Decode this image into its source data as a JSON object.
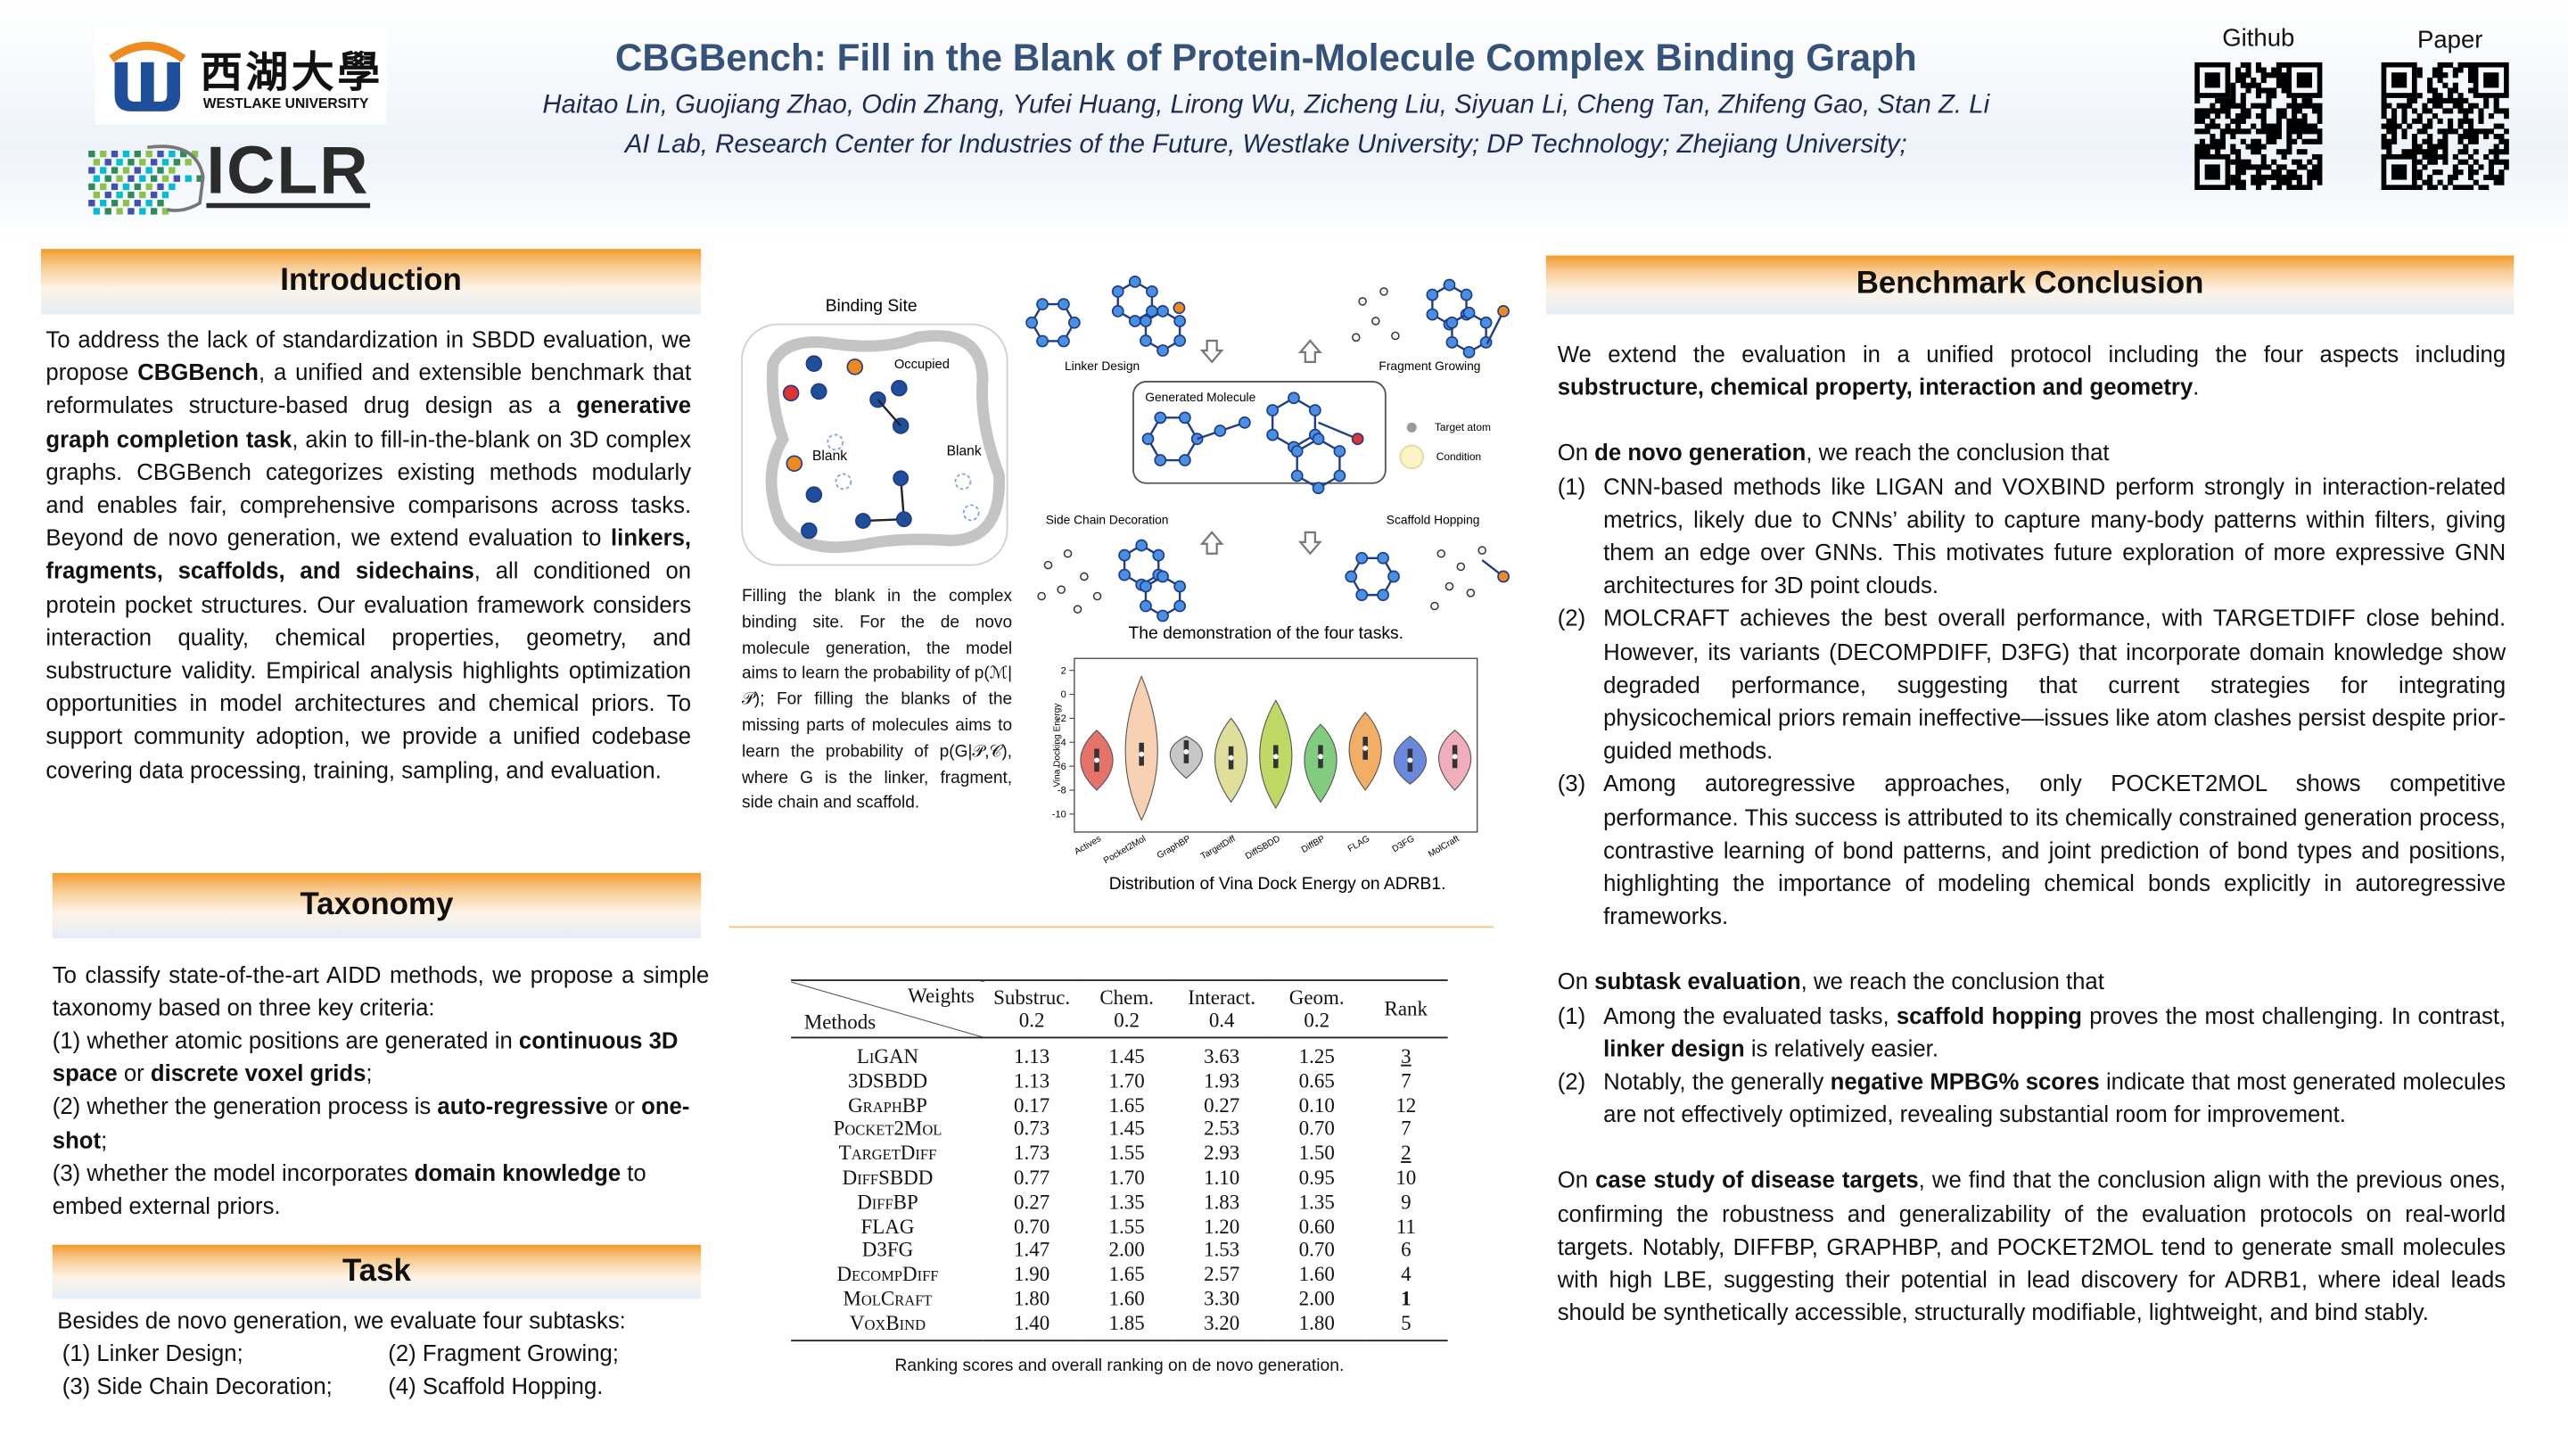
{
  "header": {
    "title": "CBGBench: Fill in the Blank of Protein-Molecule Complex Binding Graph",
    "authors": "Haitao Lin, Guojiang Zhao, Odin Zhang, Yufei Huang, Lirong Wu, Zicheng Liu, Siyuan Li, Cheng Tan, Zhifeng Gao, Stan Z. Li",
    "affiliation": "AI Lab, Research Center for Industries of the Future, Westlake University; DP Technology; Zhejiang University;",
    "github_label": "Github",
    "paper_label": "Paper",
    "westlake_cn": "西湖大學",
    "westlake_en": "WESTLAKE UNIVERSITY",
    "iclr": "ICLR"
  },
  "introduction": {
    "heading": "Introduction",
    "paragraph": [
      "To address the lack of standardization in SBDD evaluation, we propose ",
      {
        "bold": "CBGBench"
      },
      ", a unified and extensible benchmark that reformulates structure-based drug design as a ",
      {
        "bold": "generative graph completion task"
      },
      ", akin to fill-in-the-blank on 3D complex graphs. CBGBench categorizes existing methods modularly and enables fair, comprehensive comparisons across tasks. Beyond de novo generation, we extend evaluation to ",
      {
        "bold": "linkers, fragments, scaffolds, and sidechains"
      },
      ", all conditioned on protein pocket structures. Our evaluation framework considers interaction quality, chemical properties, geometry, and substructure validity. Empirical analysis highlights optimization opportunities in model architectures and chemical priors. To support community adoption, we provide a unified codebase covering data processing, training, sampling, and evaluation."
    ]
  },
  "taxonomy": {
    "heading": "Taxonomy",
    "intro": [
      "To classify state-of-the-art AIDD methods, we propose a simple taxonomy based on three key criteria:"
    ],
    "criteria": [
      [
        "(1) whether atomic positions are generated in ",
        {
          "bold": "continuous 3D space"
        },
        " or ",
        {
          "bold": "discrete voxel grids"
        },
        ";"
      ],
      [
        "(2) whether the generation process is ",
        {
          "bold": "auto-regressive"
        },
        " or ",
        {
          "bold": "one-shot"
        },
        ";"
      ],
      [
        "(3) whether the model incorporates ",
        {
          "bold": "domain knowledge"
        },
        " to embed external priors."
      ]
    ]
  },
  "task": {
    "heading": "Task",
    "intro": "Besides de novo generation, we evaluate four subtasks:",
    "subtasks": [
      "(1) Linker Design;",
      "(2)  Fragment Growing;",
      "(3) Side Chain Decoration;",
      "(4)  Scaffold Hopping."
    ]
  },
  "figure": {
    "binding_site": "Binding Site",
    "occupied": "Occupied",
    "blank_left": "Blank",
    "blank_right": "Blank",
    "binding_caption": "Filling the blank in the complex binding site. For the de novo molecule generation, the model aims to learn the probability of p(ℳ|𝒫); For filling the blanks of the missing parts of molecules aims to learn the probability of p(G|𝒫,𝒞), where G is the linker, fragment, side chain and scaffold.",
    "linker_design": "Linker Design",
    "fragment_growing": "Fragment Growing",
    "generated_molecule": "Generated Molecule",
    "target_atom": "Target atom",
    "condition": "Condition",
    "side_chain": "Side Chain Decoration",
    "scaffold_hopping": "Scaffold Hopping",
    "tasks_caption": "The demonstration of the four tasks.",
    "violin_caption": "Distribution of Vina Dock Energy on ADRB1."
  },
  "chart_data": {
    "type": "violin",
    "y_label": "Vina Docking Energy",
    "categories": [
      "Actives",
      "Pocket2Mol",
      "GraphBP",
      "TargetDiff",
      "DiffSBDD",
      "DiffBP",
      "FLAG",
      "D3FG",
      "MolCraft"
    ],
    "values": [
      -5.5,
      -5,
      -4.8,
      -5.3,
      -5.2,
      -5.2,
      -4.5,
      -5.5,
      -5.2
    ],
    "low": [
      -8,
      -10.5,
      -7,
      -9,
      -9.5,
      -9,
      -8,
      -7.5,
      -8
    ],
    "high": [
      -3,
      1.5,
      -3.5,
      -2,
      -0.5,
      -2.5,
      -1.5,
      -3.5,
      -3
    ],
    "colors": [
      "#e05a4f",
      "#f6c9a3",
      "#bdbdbd",
      "#d9d98a",
      "#b5d24a",
      "#6cc36a",
      "#f0a04b",
      "#4f74d9",
      "#ee9fb0"
    ],
    "ylim": [
      -11.5,
      3
    ],
    "yticks": [
      2,
      0,
      -2,
      -4,
      -6,
      -8,
      -10
    ],
    "grid": false
  },
  "table": {
    "weights_label": "Weights",
    "methods_label": "Methods",
    "columns": [
      [
        "Substruc.",
        "0.2"
      ],
      [
        "Chem.",
        "0.2"
      ],
      [
        "Interact.",
        "0.4"
      ],
      [
        "Geom.",
        "0.2"
      ]
    ],
    "rank_label": "Rank",
    "rows": [
      [
        "LiGAN",
        "1.13",
        "1.45",
        "3.63",
        "1.25",
        {
          "underline": "3"
        }
      ],
      [
        "3DSBDD",
        "1.13",
        "1.70",
        "1.93",
        "0.65",
        "7"
      ],
      [
        "GraphBP",
        "0.17",
        "1.65",
        "0.27",
        "0.10",
        "12"
      ],
      [
        "Pocket2Mol",
        "0.73",
        "1.45",
        "2.53",
        "0.70",
        "7"
      ],
      [
        "TargetDiff",
        "1.73",
        "1.55",
        "2.93",
        "1.50",
        {
          "underline": "2"
        }
      ],
      [
        "DiffSBDD",
        "0.77",
        "1.70",
        "1.10",
        "0.95",
        "10"
      ],
      [
        "DiffBP",
        "0.27",
        "1.35",
        "1.83",
        "1.35",
        "9"
      ],
      [
        "FLAG",
        "0.70",
        "1.55",
        "1.20",
        "0.60",
        "11"
      ],
      [
        "D3FG",
        "1.47",
        "2.00",
        "1.53",
        "0.70",
        "6"
      ],
      [
        "DecompDiff",
        "1.90",
        "1.65",
        "2.57",
        "1.60",
        "4"
      ],
      [
        "MolCraft",
        "1.80",
        "1.60",
        "3.30",
        "2.00",
        {
          "bold": "1"
        }
      ],
      [
        "VoxBind",
        "1.40",
        "1.85",
        "3.20",
        "1.80",
        "5"
      ]
    ],
    "caption": "Ranking scores and overall ranking on de novo generation."
  },
  "conclusion": {
    "heading": "Benchmark Conclusion",
    "blocks": [
      {
        "p": [
          "We extend the evaluation in a unified protocol including the four aspects including ",
          {
            "bold": "substructure, chemical property, interaction and geometry"
          },
          "."
        ]
      },
      {
        "p": [
          "On ",
          {
            "bold": "de novo generation"
          },
          ", we reach the conclusion that"
        ]
      },
      {
        "list": [
          {
            "marker": "(1)",
            "runs": [
              "CNN-based methods like LIGAN and VOXBIND perform strongly in interaction-related metrics, likely due to CNNs’ ability to capture many-body patterns within filters, giving them an edge over GNNs. This motivates future exploration of more expressive GNN architectures for 3D point clouds."
            ]
          },
          {
            "marker": "(2)",
            "runs": [
              "MOLCRAFT achieves the best overall performance, with TARGETDIFF close behind. However, its variants (DECOMPDIFF, D3FG) that incorporate domain knowledge show degraded performance, suggesting that current strategies for integrating physicochemical priors remain ineffective—issues like atom clashes persist despite prior-guided methods."
            ]
          },
          {
            "marker": "(3)",
            "runs": [
              "Among autoregressive approaches, only POCKET2MOL shows competitive performance. This success is attributed to its chemically constrained generation process, contrastive learning of bond patterns, and joint prediction of bond types and positions, highlighting the importance of modeling chemical bonds explicitly in autoregressive frameworks."
            ]
          }
        ]
      },
      {
        "p": [
          "On ",
          {
            "bold": "subtask evaluation"
          },
          ", we reach the conclusion that"
        ]
      },
      {
        "list": [
          {
            "marker": "(1)",
            "runs": [
              "Among the evaluated tasks, ",
              {
                "bold": "scaffold hopping"
              },
              " proves the most challenging. In contrast, ",
              {
                "bold": "linker design"
              },
              " is relatively easier."
            ]
          },
          {
            "marker": "(2)",
            "runs": [
              "Notably, the generally ",
              {
                "bold": "negative MPBG% scores"
              },
              " indicate that most generated molecules are not effectively optimized, revealing substantial room for improvement."
            ]
          }
        ]
      },
      {
        "p": [
          "On ",
          {
            "bold": "case study of disease targets"
          },
          ", we find that the conclusion align with the previous ones, confirming the robustness and generalizability of the evaluation protocols on real-world targets. Notably, DIFFBP, GRAPHBP, and POCKET2MOL tend to generate small molecules with high LBE, suggesting their potential in lead discovery for ADRB1, where ideal leads should be synthetically accessible, structurally modifiable, lightweight, and bind stably."
        ]
      }
    ]
  }
}
